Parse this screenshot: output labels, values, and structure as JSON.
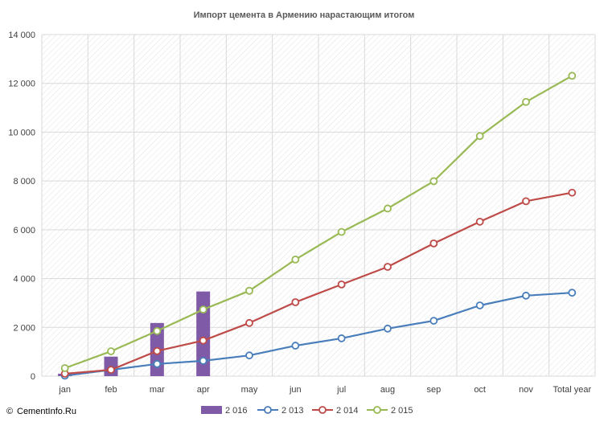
{
  "chart_data": {
    "type": "bar+line",
    "title": "Импорт цемента в Армению нарастающим  итогом",
    "categories": [
      "jan",
      "feb",
      "mar",
      "apr",
      "may",
      "jun",
      "jul",
      "aug",
      "sep",
      "oct",
      "nov",
      "Total year"
    ],
    "ylim": [
      0,
      14000
    ],
    "yticks": [
      0,
      2000,
      4000,
      6000,
      8000,
      10000,
      12000,
      14000
    ],
    "ytick_labels": [
      "0",
      "2 000",
      "4 000",
      "6 000",
      "8 000",
      "10 000",
      "12 000",
      "14 000"
    ],
    "grid": true,
    "legend_position": "bottom",
    "bars": {
      "name": "2 016",
      "color": "#7f5aa6",
      "values": [
        100,
        800,
        2180,
        3470
      ]
    },
    "series": [
      {
        "name": "2 013",
        "color": "#4a7ebb",
        "values": [
          20,
          260,
          500,
          630,
          850,
          1250,
          1550,
          1950,
          2270,
          2900,
          3300,
          3420
        ]
      },
      {
        "name": "2 014",
        "color": "#be4b48",
        "values": [
          100,
          260,
          1030,
          1460,
          2180,
          3030,
          3760,
          4480,
          5440,
          6330,
          7170,
          7520
        ]
      },
      {
        "name": "2 015",
        "color": "#98b954",
        "values": [
          330,
          1020,
          1850,
          2730,
          3500,
          4780,
          5910,
          6870,
          7990,
          9840,
          11240,
          12310
        ]
      }
    ]
  },
  "footer": {
    "copyright_symbol": "©",
    "text": "CementInfo.Ru"
  }
}
